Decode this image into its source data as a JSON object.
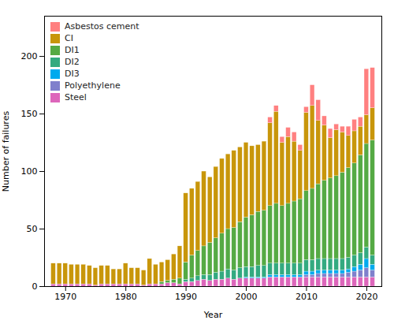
{
  "chart_data": {
    "type": "bar",
    "stacked": true,
    "x": [
      1968,
      1969,
      1970,
      1971,
      1972,
      1973,
      1974,
      1975,
      1976,
      1977,
      1978,
      1979,
      1980,
      1981,
      1982,
      1983,
      1984,
      1985,
      1986,
      1987,
      1988,
      1989,
      1990,
      1991,
      1992,
      1993,
      1994,
      1995,
      1996,
      1997,
      1998,
      1999,
      2000,
      2001,
      2002,
      2003,
      2004,
      2005,
      2006,
      2007,
      2008,
      2009,
      2010,
      2011,
      2012,
      2013,
      2014,
      2015,
      2016,
      2017,
      2018,
      2019,
      2020,
      2021
    ],
    "xlabel": "Year",
    "ylabel": "Number of failures",
    "xlim": [
      1966.5,
      2022.5
    ],
    "xticks": [
      1970,
      1980,
      1990,
      2000,
      2010,
      2020
    ],
    "ylim": [
      0,
      235
    ],
    "yticks": [
      0,
      50,
      100,
      150,
      200
    ],
    "legend": "upper left",
    "grid": false,
    "series": [
      {
        "name": "Steel",
        "color": "#DD66BB",
        "values": [
          2,
          2,
          2,
          2,
          2,
          2,
          2,
          1,
          2,
          2,
          2,
          2,
          2,
          2,
          2,
          1,
          2,
          2,
          2,
          3,
          3,
          2,
          4,
          4,
          5,
          6,
          5,
          6,
          6,
          7,
          6,
          7,
          7,
          7,
          7,
          7,
          8,
          8,
          8,
          8,
          8,
          8,
          8,
          8,
          8,
          8,
          8,
          8,
          8,
          8,
          8,
          8,
          8,
          8
        ]
      },
      {
        "name": "Polyethylene",
        "color": "#8080CC",
        "values": [
          0,
          0,
          0,
          0,
          0,
          0,
          0,
          0,
          0,
          0,
          0,
          0,
          0,
          0,
          0,
          0,
          0,
          0,
          0,
          0,
          0,
          0,
          0,
          0,
          0,
          0,
          0,
          0,
          0,
          0,
          0,
          0,
          0,
          0,
          0,
          0,
          0,
          0,
          0,
          0,
          0,
          0,
          2,
          2,
          3,
          3,
          3,
          3,
          3,
          4,
          5,
          6,
          8,
          6
        ]
      },
      {
        "name": "DI3",
        "color": "#00AAEE",
        "values": [
          0,
          0,
          0,
          0,
          0,
          0,
          0,
          0,
          0,
          0,
          0,
          0,
          0,
          0,
          0,
          0,
          0,
          0,
          0,
          0,
          0,
          0,
          0,
          0,
          0,
          0,
          0,
          0,
          0,
          0,
          0,
          0,
          1,
          1,
          1,
          1,
          2,
          2,
          2,
          2,
          2,
          2,
          3,
          3,
          3,
          3,
          3,
          3,
          3,
          3,
          4,
          5,
          8,
          5
        ]
      },
      {
        "name": "DI2",
        "color": "#33AA80",
        "values": [
          0,
          0,
          0,
          0,
          0,
          0,
          0,
          0,
          0,
          0,
          0,
          0,
          0,
          0,
          0,
          0,
          0,
          0,
          0,
          0,
          0,
          0,
          2,
          3,
          4,
          4,
          5,
          6,
          7,
          8,
          8,
          9,
          9,
          9,
          10,
          10,
          10,
          10,
          10,
          10,
          10,
          10,
          10,
          10,
          10,
          10,
          10,
          10,
          10,
          10,
          10,
          10,
          10,
          8
        ]
      },
      {
        "name": "DI1",
        "color": "#55AA44",
        "values": [
          0,
          0,
          0,
          0,
          0,
          0,
          0,
          0,
          0,
          0,
          0,
          0,
          0,
          0,
          0,
          0,
          0,
          0,
          2,
          2,
          3,
          5,
          15,
          20,
          22,
          25,
          28,
          30,
          33,
          35,
          37,
          40,
          43,
          45,
          47,
          48,
          50,
          52,
          50,
          52,
          54,
          56,
          60,
          62,
          65,
          68,
          70,
          72,
          75,
          78,
          80,
          85,
          90,
          100
        ]
      },
      {
        "name": "CI",
        "color": "#C8960A",
        "values": [
          18,
          18,
          18,
          17,
          17,
          17,
          16,
          15,
          16,
          16,
          13,
          13,
          18,
          14,
          14,
          13,
          22,
          17,
          17,
          18,
          22,
          28,
          60,
          58,
          60,
          65,
          57,
          62,
          65,
          65,
          67,
          65,
          65,
          60,
          58,
          60,
          72,
          80,
          55,
          58,
          52,
          42,
          68,
          72,
          55,
          48,
          35,
          40,
          35,
          28,
          28,
          25,
          25,
          28
        ]
      },
      {
        "name": "Asbestos cement",
        "color": "#FF8080",
        "values": [
          0,
          0,
          0,
          0,
          0,
          0,
          0,
          0,
          0,
          0,
          0,
          0,
          0,
          0,
          0,
          0,
          0,
          0,
          0,
          0,
          0,
          0,
          0,
          0,
          0,
          0,
          0,
          0,
          0,
          0,
          0,
          0,
          0,
          0,
          0,
          0,
          5,
          5,
          5,
          8,
          8,
          5,
          5,
          18,
          18,
          8,
          8,
          5,
          5,
          8,
          10,
          8,
          40,
          35
        ]
      }
    ]
  }
}
